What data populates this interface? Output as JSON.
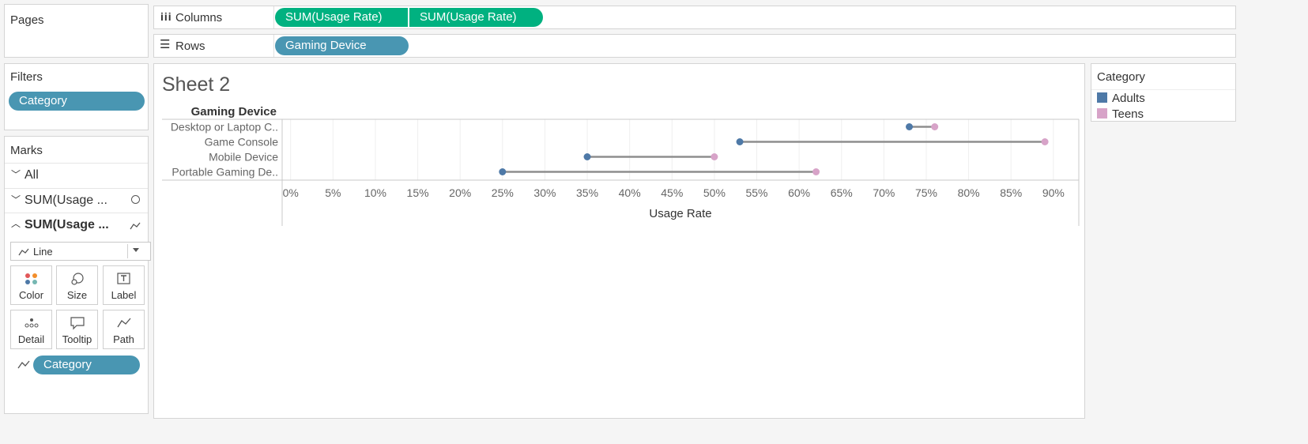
{
  "shelves": {
    "pages_label": "Pages",
    "columns_label": "Columns",
    "rows_label": "Rows",
    "columns_pills": [
      "SUM(Usage Rate)",
      "SUM(Usage Rate)"
    ],
    "rows_pill": "Gaming Device"
  },
  "filters": {
    "title": "Filters",
    "pill": "Category"
  },
  "marks": {
    "title": "Marks",
    "all_label": "All",
    "card1_label": "SUM(Usage ...",
    "card2_label": "SUM(Usage ...",
    "mark_type": "Line",
    "buttons": [
      "Color",
      "Size",
      "Label",
      "Detail",
      "Tooltip",
      "Path"
    ],
    "category_pill": "Category"
  },
  "legend": {
    "title": "Category",
    "items": [
      {
        "label": "Adults",
        "color": "#4e79a7"
      },
      {
        "label": "Teens",
        "color": "#d7a3c8"
      }
    ]
  },
  "sheet": {
    "title": "Sheet 2",
    "row_header": "Gaming Device"
  },
  "chart_data": {
    "type": "dumbbell",
    "categories": [
      "Desktop or Laptop C..",
      "Game Console",
      "Mobile Device",
      "Portable Gaming De.."
    ],
    "series": [
      {
        "name": "Adults",
        "values": [
          73,
          53,
          35,
          25
        ],
        "color": "#4e79a7"
      },
      {
        "name": "Teens",
        "values": [
          76,
          89,
          50,
          62
        ],
        "color": "#d7a3c8"
      }
    ],
    "xlabel": "Usage Rate",
    "xlim": [
      -1,
      93
    ],
    "xticks": [
      0,
      5,
      10,
      15,
      20,
      25,
      30,
      35,
      40,
      45,
      50,
      55,
      60,
      65,
      70,
      75,
      80,
      85,
      90
    ],
    "xtick_labels": [
      "0%",
      "5%",
      "10%",
      "15%",
      "20%",
      "25%",
      "30%",
      "35%",
      "40%",
      "45%",
      "50%",
      "55%",
      "60%",
      "65%",
      "70%",
      "75%",
      "80%",
      "85%",
      "90%"
    ],
    "connector_color": "#8e8e8e",
    "grid": true
  }
}
